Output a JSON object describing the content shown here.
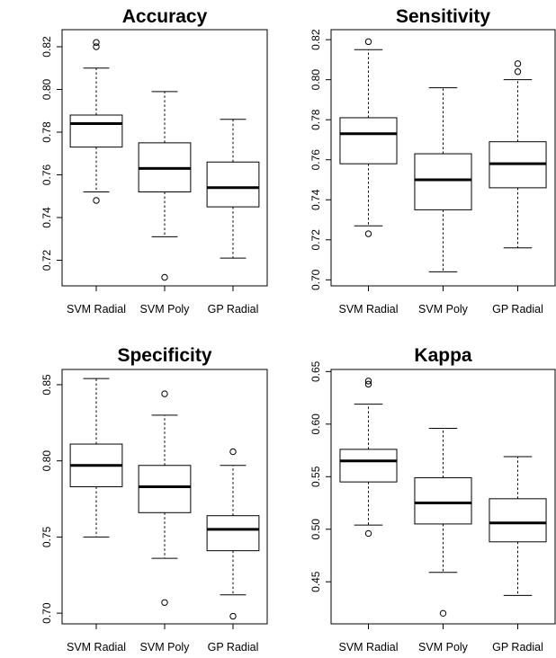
{
  "chart_data": [
    {
      "type": "boxplot",
      "title": "Accuracy",
      "categories": [
        "SVM Radial",
        "SVM Poly",
        "GP Radial"
      ],
      "ylim": [
        0.708,
        0.828
      ],
      "yticks": [
        0.72,
        0.74,
        0.76,
        0.78,
        0.8,
        0.82
      ],
      "tick_labels": [
        "0.72",
        "0.74",
        "0.76",
        "0.78",
        "0.80",
        "0.82"
      ],
      "boxes": [
        {
          "whisker_low": 0.752,
          "q1": 0.773,
          "median": 0.784,
          "q3": 0.788,
          "whisker_high": 0.81,
          "outliers": [
            0.748,
            0.82,
            0.822
          ]
        },
        {
          "whisker_low": 0.731,
          "q1": 0.752,
          "median": 0.763,
          "q3": 0.775,
          "whisker_high": 0.799,
          "outliers": [
            0.712
          ]
        },
        {
          "whisker_low": 0.721,
          "q1": 0.745,
          "median": 0.754,
          "q3": 0.766,
          "whisker_high": 0.786,
          "outliers": []
        }
      ]
    },
    {
      "type": "boxplot",
      "title": "Sensitivity",
      "categories": [
        "SVM Radial",
        "SVM Poly",
        "GP Radial"
      ],
      "ylim": [
        0.697,
        0.825
      ],
      "yticks": [
        0.7,
        0.72,
        0.74,
        0.76,
        0.78,
        0.8,
        0.82
      ],
      "tick_labels": [
        "0.70",
        "0.72",
        "0.74",
        "0.76",
        "0.78",
        "0.80",
        "0.82"
      ],
      "boxes": [
        {
          "whisker_low": 0.727,
          "q1": 0.758,
          "median": 0.773,
          "q3": 0.781,
          "whisker_high": 0.815,
          "outliers": [
            0.723,
            0.819
          ]
        },
        {
          "whisker_low": 0.704,
          "q1": 0.735,
          "median": 0.75,
          "q3": 0.763,
          "whisker_high": 0.796,
          "outliers": []
        },
        {
          "whisker_low": 0.716,
          "q1": 0.746,
          "median": 0.758,
          "q3": 0.769,
          "whisker_high": 0.8,
          "outliers": [
            0.804,
            0.808
          ]
        }
      ]
    },
    {
      "type": "boxplot",
      "title": "Specificity",
      "categories": [
        "SVM Radial",
        "SVM Poly",
        "GP Radial"
      ],
      "ylim": [
        0.693,
        0.86
      ],
      "yticks": [
        0.7,
        0.75,
        0.8,
        0.85
      ],
      "tick_labels": [
        "0.70",
        "0.75",
        "0.80",
        "0.85"
      ],
      "boxes": [
        {
          "whisker_low": 0.75,
          "q1": 0.783,
          "median": 0.797,
          "q3": 0.811,
          "whisker_high": 0.854,
          "outliers": []
        },
        {
          "whisker_low": 0.736,
          "q1": 0.766,
          "median": 0.783,
          "q3": 0.797,
          "whisker_high": 0.83,
          "outliers": [
            0.707,
            0.844
          ]
        },
        {
          "whisker_low": 0.712,
          "q1": 0.741,
          "median": 0.755,
          "q3": 0.764,
          "whisker_high": 0.797,
          "outliers": [
            0.698,
            0.806
          ]
        }
      ]
    },
    {
      "type": "boxplot",
      "title": "Kappa",
      "categories": [
        "SVM Radial",
        "SVM Poly",
        "GP Radial"
      ],
      "ylim": [
        0.41,
        0.652
      ],
      "yticks": [
        0.45,
        0.5,
        0.55,
        0.6,
        0.65
      ],
      "tick_labels": [
        "0.45",
        "0.50",
        "0.55",
        "0.60",
        "0.65"
      ],
      "boxes": [
        {
          "whisker_low": 0.504,
          "q1": 0.545,
          "median": 0.565,
          "q3": 0.576,
          "whisker_high": 0.619,
          "outliers": [
            0.496,
            0.638,
            0.641
          ]
        },
        {
          "whisker_low": 0.459,
          "q1": 0.505,
          "median": 0.525,
          "q3": 0.549,
          "whisker_high": 0.596,
          "outliers": [
            0.42
          ]
        },
        {
          "whisker_low": 0.437,
          "q1": 0.488,
          "median": 0.506,
          "q3": 0.529,
          "whisker_high": 0.569,
          "outliers": []
        }
      ]
    }
  ]
}
